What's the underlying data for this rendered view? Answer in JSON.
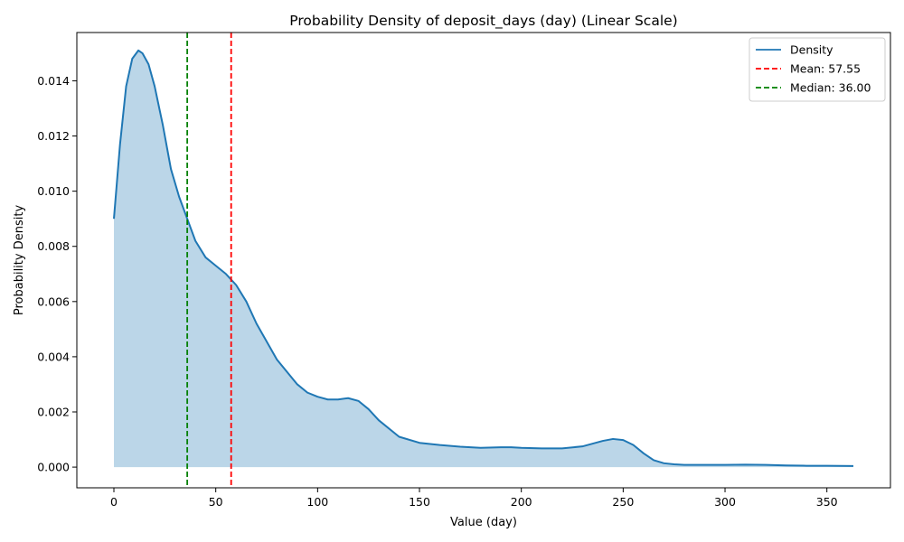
{
  "chart_data": {
    "type": "area",
    "title": "Probability Density of deposit_days (day) (Linear Scale)",
    "xlabel": "Value (day)",
    "ylabel": "Probability Density",
    "xlim": [
      -18.2,
      381.2
    ],
    "ylim": [
      -0.00075,
      0.01575
    ],
    "x_ticks": [
      0,
      50,
      100,
      150,
      200,
      250,
      300,
      350
    ],
    "x_tick_labels": [
      "0",
      "50",
      "100",
      "150",
      "200",
      "250",
      "300",
      "350"
    ],
    "y_ticks": [
      0.0,
      0.002,
      0.004,
      0.006,
      0.008,
      0.01,
      0.012,
      0.014
    ],
    "y_tick_labels": [
      "0.000",
      "0.002",
      "0.004",
      "0.006",
      "0.008",
      "0.010",
      "0.012",
      "0.014"
    ],
    "grid": false,
    "legend_position": "top-right",
    "series": [
      {
        "name": "Density",
        "color": "#1f77b4",
        "fill_color": "#1f77b4",
        "fill_opacity": 0.3,
        "x": [
          0,
          3,
          6,
          9,
          12,
          14,
          17,
          20,
          24,
          28,
          32,
          36,
          40,
          45,
          50,
          55,
          60,
          65,
          70,
          80,
          90,
          95,
          100,
          105,
          110,
          115,
          120,
          125,
          130,
          140,
          150,
          160,
          170,
          180,
          190,
          195,
          200,
          210,
          220,
          230,
          240,
          245,
          250,
          255,
          260,
          265,
          270,
          275,
          280,
          290,
          300,
          310,
          320,
          330,
          340,
          350,
          363
        ],
        "y": [
          0.009,
          0.0117,
          0.0138,
          0.0148,
          0.0151,
          0.015,
          0.0146,
          0.0138,
          0.0124,
          0.0108,
          0.0098,
          0.009,
          0.0082,
          0.0076,
          0.0073,
          0.007,
          0.0066,
          0.006,
          0.0052,
          0.0039,
          0.003,
          0.0027,
          0.00255,
          0.00245,
          0.00245,
          0.0025,
          0.0024,
          0.0021,
          0.0017,
          0.0011,
          0.00088,
          0.0008,
          0.00074,
          0.0007,
          0.00072,
          0.00072,
          0.0007,
          0.00068,
          0.00068,
          0.00075,
          0.00095,
          0.00102,
          0.00098,
          0.0008,
          0.0005,
          0.00025,
          0.00014,
          0.0001,
          8e-05,
          8e-05,
          8e-05,
          9e-05,
          8e-05,
          6e-05,
          5e-05,
          5e-05,
          4e-05
        ]
      }
    ],
    "reference_lines": [
      {
        "name": "Mean: 57.55",
        "x": 57.55,
        "color": "#ff0000",
        "style": "dashed"
      },
      {
        "name": "Median: 36.00",
        "x": 36.0,
        "color": "#008000",
        "style": "dashed"
      }
    ]
  }
}
